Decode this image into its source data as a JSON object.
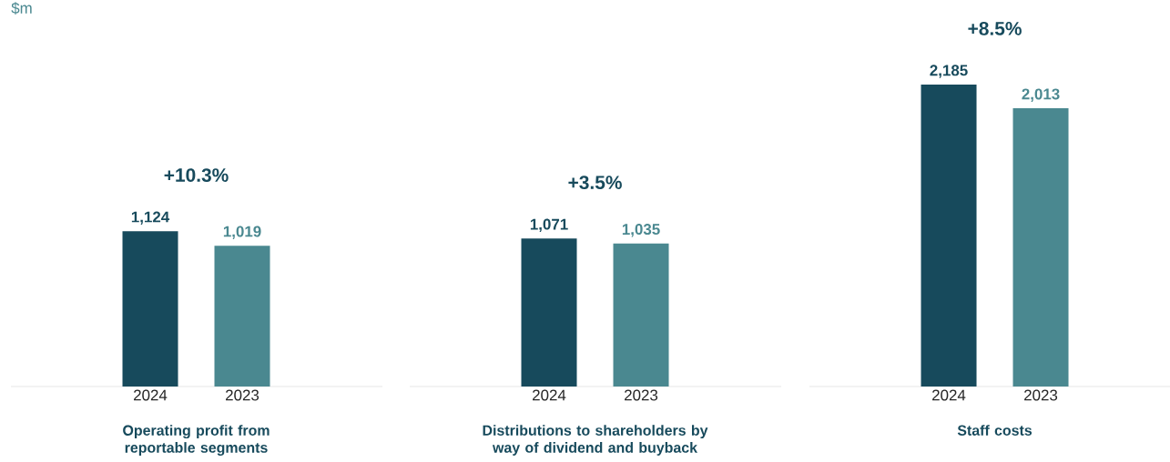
{
  "chart_data": [
    {
      "type": "bar",
      "xlabel": "Operating profit from reportable segments",
      "categories": [
        "2024",
        "2023"
      ],
      "values": [
        1124,
        1019
      ],
      "colors": [
        "#174a5c",
        "#4a8890"
      ],
      "value_labels": [
        "1,124",
        "1,019"
      ],
      "annotations": [
        "+10.3%",
        "$m"
      ]
    },
    {
      "type": "bar",
      "xlabel": "Distributions to shareholders by way of dividend and buyback",
      "categories": [
        "2024",
        "2023"
      ],
      "values": [
        1071,
        1035
      ],
      "colors": [
        "#174a5c",
        "#4a8890"
      ],
      "value_labels": [
        "1,071",
        "1,035"
      ],
      "annotations": [
        "+3.5%"
      ]
    },
    {
      "type": "bar",
      "xlabel": "Staff costs",
      "categories": [
        "2024",
        "2023"
      ],
      "values": [
        2185,
        2013
      ],
      "colors": [
        "#174a5c",
        "#4a8890"
      ],
      "value_labels": [
        "2,185",
        "2,013"
      ],
      "annotations": [
        "+8.5%"
      ]
    }
  ]
}
